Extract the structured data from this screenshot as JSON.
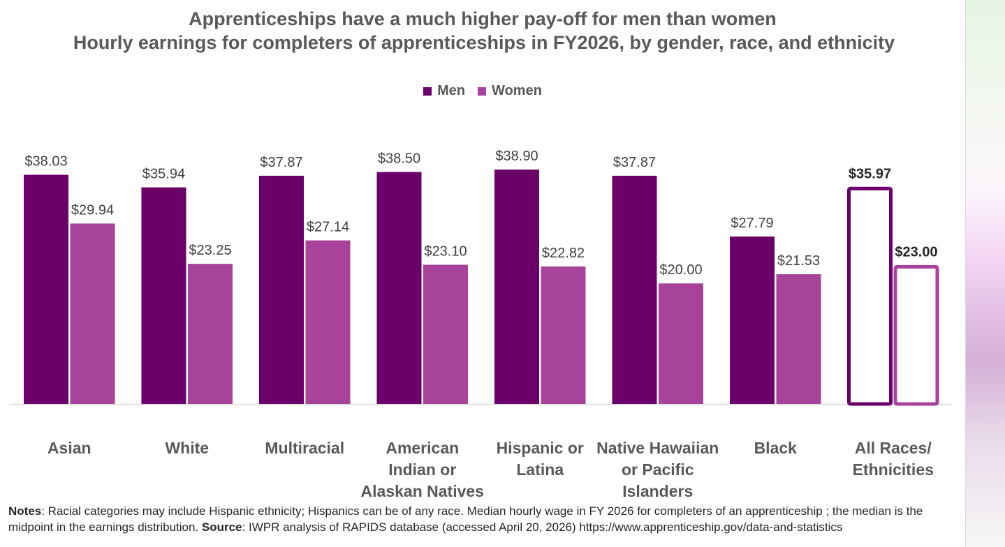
{
  "chart_data": {
    "type": "bar",
    "title": "Apprenticeships have a much higher pay-off for men than women",
    "subtitle": "Hourly earnings  for completers of apprenticeships in FY2026, by gender, race, and ethnicity",
    "categories": [
      [
        "Asian"
      ],
      [
        "White"
      ],
      [
        "Multiracial"
      ],
      [
        "American",
        "Indian or",
        "Alaskan Natives"
      ],
      [
        "Hispanic or",
        "Latina"
      ],
      [
        "Native Hawaiian",
        "or Pacific",
        "Islanders"
      ],
      [
        "Black"
      ],
      [
        "All Races/",
        "Ethnicities"
      ]
    ],
    "series": [
      {
        "name": "Men",
        "color": "#6b006b",
        "values": [
          38.03,
          35.94,
          37.87,
          38.5,
          38.9,
          37.87,
          27.79,
          35.97
        ],
        "labels": [
          "$38.03",
          "$35.94",
          "$37.87",
          "$38.50",
          "$38.90",
          "$37.87",
          "$27.79",
          "$35.97"
        ]
      },
      {
        "name": "Women",
        "color": "#a8439b",
        "values": [
          29.94,
          23.25,
          27.14,
          23.1,
          22.82,
          20.0,
          21.53,
          23.0
        ],
        "labels": [
          "$29.94",
          "$23.25",
          "$27.14",
          "$23.10",
          "$22.82",
          "$20.00",
          "$21.53",
          "$23.00"
        ]
      }
    ],
    "highlight_category": 7,
    "ylim": [
      0,
      38.9
    ],
    "grid": false,
    "legend_position": "top-center",
    "xlabel": "",
    "ylabel": ""
  },
  "notes": {
    "notes_label": "Notes",
    "notes_text": ": Racial categories may include Hispanic ethnicity; Hispanics can be of any race. Median hourly wage in FY 2026 for completers of an apprenticeship ; the median is  the midpoint in the earnings distribution.  ",
    "source_label": "Source",
    "source_text": ": IWPR analysis of RAPIDS database  (accessed April 20, 2026)  https://www.apprenticeship.gov/data-and-statistics"
  }
}
